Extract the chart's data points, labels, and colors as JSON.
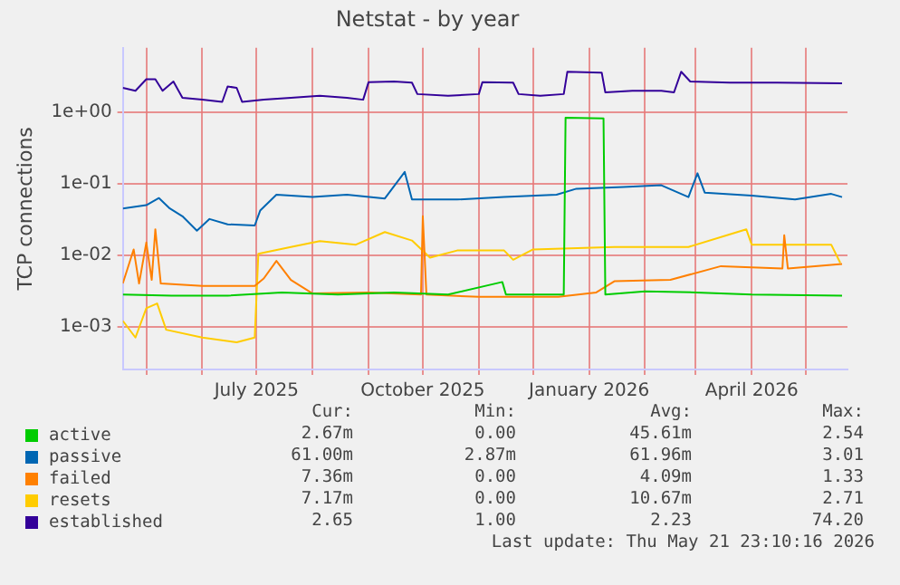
{
  "chart_data": {
    "type": "line",
    "title": "Netstat - by year",
    "ylabel": "TCP connections",
    "log": "y",
    "grid": true,
    "marker": "none",
    "legend": "bottom",
    "xlim": [
      "2025-04-18",
      "2026-05-24"
    ],
    "xticks": [
      {
        "value": "2025-05-01",
        "label": null
      },
      {
        "value": "2025-06-01",
        "label": null
      },
      {
        "value": "2025-07-01",
        "label": "July 2025"
      },
      {
        "value": "2025-08-01",
        "label": null
      },
      {
        "value": "2025-09-01",
        "label": null
      },
      {
        "value": "2025-10-01",
        "label": "October 2025"
      },
      {
        "value": "2025-11-01",
        "label": null
      },
      {
        "value": "2025-12-01",
        "label": null
      },
      {
        "value": "2026-01-01",
        "label": "January 2026"
      },
      {
        "value": "2026-02-01",
        "label": null
      },
      {
        "value": "2026-03-01",
        "label": null
      },
      {
        "value": "2026-04-01",
        "label": "April 2026"
      },
      {
        "value": "2026-05-01",
        "label": null
      }
    ],
    "ylim": [
      0.00025,
      8
    ],
    "yticks": [
      {
        "value": 0.001,
        "label": "1e-03"
      },
      {
        "value": 0.01,
        "label": "1e-02"
      },
      {
        "value": 0.1,
        "label": "1e-01"
      },
      {
        "value": 1,
        "label": "1e+00"
      }
    ],
    "series": [
      {
        "name": "active",
        "color": "#00cc00",
        "x": [
          "2025-04-18",
          "2025-05-15",
          "2025-06-15",
          "2025-07-15",
          "2025-08-15",
          "2025-09-15",
          "2025-10-15",
          "2025-11-14",
          "2025-11-16",
          "2025-12-18",
          "2025-12-19",
          "2026-01-09",
          "2026-01-10",
          "2026-02-01",
          "2026-03-01",
          "2026-04-01",
          "2026-05-21"
        ],
        "values": [
          0.0028,
          0.0027,
          0.0027,
          0.003,
          0.0028,
          0.003,
          0.0028,
          0.0042,
          0.0028,
          0.0028,
          0.84,
          0.82,
          0.0028,
          0.0031,
          0.003,
          0.0028,
          0.0027
        ]
      },
      {
        "name": "passive",
        "color": "#0066b3",
        "x": [
          "2025-04-18",
          "2025-05-01",
          "2025-05-08",
          "2025-05-14",
          "2025-05-21",
          "2025-05-29",
          "2025-06-05",
          "2025-06-15",
          "2025-06-30",
          "2025-07-03",
          "2025-07-12",
          "2025-08-01",
          "2025-08-20",
          "2025-09-10",
          "2025-09-21",
          "2025-09-25",
          "2025-10-20",
          "2025-11-15",
          "2025-12-14",
          "2025-12-25",
          "2026-01-20",
          "2026-02-10",
          "2026-02-25",
          "2026-03-02",
          "2026-03-06",
          "2026-04-01",
          "2026-04-25",
          "2026-05-15",
          "2026-05-21"
        ],
        "values": [
          0.045,
          0.05,
          0.063,
          0.045,
          0.035,
          0.022,
          0.032,
          0.027,
          0.026,
          0.042,
          0.07,
          0.065,
          0.07,
          0.062,
          0.146,
          0.06,
          0.06,
          0.065,
          0.07,
          0.085,
          0.09,
          0.095,
          0.065,
          0.14,
          0.075,
          0.068,
          0.06,
          0.072,
          0.065
        ]
      },
      {
        "name": "failed",
        "color": "#ff8000",
        "x": [
          "2025-04-18",
          "2025-04-24",
          "2025-04-27",
          "2025-05-01",
          "2025-05-04",
          "2025-05-06",
          "2025-05-09",
          "2025-06-01",
          "2025-06-30",
          "2025-07-05",
          "2025-07-12",
          "2025-07-20",
          "2025-08-01",
          "2025-09-01",
          "2025-09-30",
          "2025-10-01",
          "2025-10-03",
          "2025-11-01",
          "2025-12-15",
          "2026-01-05",
          "2026-01-15",
          "2026-02-15",
          "2026-03-15",
          "2026-04-18",
          "2026-04-19",
          "2026-04-21",
          "2026-05-21"
        ],
        "values": [
          0.004,
          0.012,
          0.004,
          0.015,
          0.0045,
          0.023,
          0.004,
          0.0037,
          0.0037,
          0.0047,
          0.0083,
          0.0045,
          0.0029,
          0.003,
          0.0028,
          0.035,
          0.0028,
          0.0026,
          0.0026,
          0.003,
          0.0043,
          0.0045,
          0.007,
          0.0065,
          0.019,
          0.0065,
          0.0075
        ]
      },
      {
        "name": "resets",
        "color": "#ffcc00",
        "x": [
          "2025-04-18",
          "2025-04-25",
          "2025-05-01",
          "2025-05-07",
          "2025-05-12",
          "2025-06-01",
          "2025-06-20",
          "2025-06-30",
          "2025-07-02",
          "2025-07-20",
          "2025-08-05",
          "2025-08-25",
          "2025-09-10",
          "2025-09-25",
          "2025-10-05",
          "2025-10-20",
          "2025-11-15",
          "2025-11-20",
          "2025-12-01",
          "2026-01-15",
          "2026-02-25",
          "2026-03-29",
          "2026-04-01",
          "2026-05-15",
          "2026-05-20"
        ],
        "values": [
          0.0012,
          0.0007,
          0.0018,
          0.0021,
          0.0009,
          0.0007,
          0.0006,
          0.0007,
          0.0104,
          0.013,
          0.0157,
          0.014,
          0.021,
          0.016,
          0.0092,
          0.0116,
          0.0116,
          0.0086,
          0.012,
          0.013,
          0.013,
          0.023,
          0.014,
          0.014,
          0.0078
        ]
      },
      {
        "name": "established",
        "color": "#330099",
        "x": [
          "2025-04-18",
          "2025-04-25",
          "2025-05-01",
          "2025-05-06",
          "2025-05-10",
          "2025-05-16",
          "2025-05-21",
          "2025-06-01",
          "2025-06-12",
          "2025-06-15",
          "2025-06-20",
          "2025-06-23",
          "2025-07-05",
          "2025-07-20",
          "2025-08-05",
          "2025-08-20",
          "2025-08-29",
          "2025-09-01",
          "2025-09-15",
          "2025-09-25",
          "2025-09-28",
          "2025-10-15",
          "2025-11-01",
          "2025-11-03",
          "2025-11-20",
          "2025-11-23",
          "2025-12-05",
          "2025-12-18",
          "2025-12-20",
          "2026-01-08",
          "2026-01-10",
          "2026-01-25",
          "2026-02-10",
          "2026-02-17",
          "2026-02-21",
          "2026-02-26",
          "2026-03-20",
          "2026-04-15",
          "2026-05-21"
        ],
        "values": [
          2.2,
          2.0,
          2.9,
          2.9,
          2.0,
          2.7,
          1.6,
          1.5,
          1.4,
          2.3,
          2.2,
          1.4,
          1.5,
          1.6,
          1.7,
          1.6,
          1.5,
          2.65,
          2.7,
          2.6,
          1.8,
          1.7,
          1.8,
          2.65,
          2.6,
          1.8,
          1.7,
          1.8,
          3.7,
          3.6,
          1.9,
          2.0,
          2.0,
          1.9,
          3.7,
          2.7,
          2.6,
          2.6,
          2.55
        ]
      }
    ],
    "annotations": [
      "Cur:",
      "Min:",
      "Avg:",
      "Max:",
      "2.67m",
      "0.00",
      "45.61m",
      "2.54",
      "61.00m",
      "2.87m",
      "61.96m",
      "3.01",
      "7.36m",
      "0.00",
      "4.09m",
      "1.33",
      "7.17m",
      "0.00",
      "10.67m",
      "2.71",
      "2.65",
      "1.00",
      "2.23",
      "74.20",
      "Last update: Thu May 21 23:10:16 2026"
    ]
  }
}
